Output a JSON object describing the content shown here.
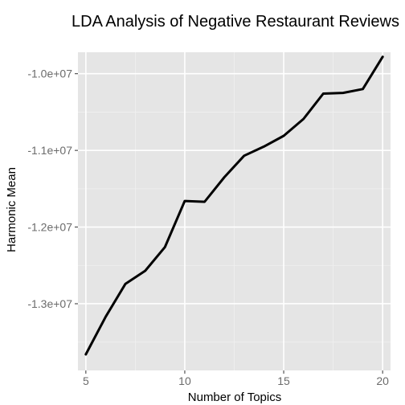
{
  "chart_data": {
    "type": "line",
    "title": "LDA Analysis of Negative Restaurant Reviews",
    "xlabel": "Number of Topics",
    "ylabel": "Harmonic Mean",
    "xlim": [
      4.6,
      20.4
    ],
    "ylim": [
      -13870000,
      -9720000
    ],
    "x_ticks": [
      5,
      10,
      15,
      20
    ],
    "x_tick_labels": [
      "5",
      "10",
      "15",
      "20"
    ],
    "y_ticks": [
      -13000000,
      -12000000,
      -11000000,
      -10000000
    ],
    "y_tick_labels": [
      "-1.3e+07",
      "-1.2e+07",
      "-1.1e+07",
      "-1.0e+07"
    ],
    "grid": true,
    "series": [
      {
        "x": [
          5,
          6,
          7,
          8,
          9,
          10,
          11,
          12,
          13,
          14,
          15,
          16,
          17,
          18,
          19,
          20
        ],
        "values": [
          -13660000,
          -13170000,
          -12740000,
          -12570000,
          -12260000,
          -11660000,
          -11670000,
          -11350000,
          -11070000,
          -10950000,
          -10810000,
          -10590000,
          -10260000,
          -10250000,
          -10200000,
          -9780000
        ],
        "color": "#000000"
      }
    ]
  },
  "colors": {
    "panel_background": "#e5e5e5",
    "grid_major": "#ffffff",
    "grid_minor": "#f0f0f0",
    "line": "#000000"
  }
}
